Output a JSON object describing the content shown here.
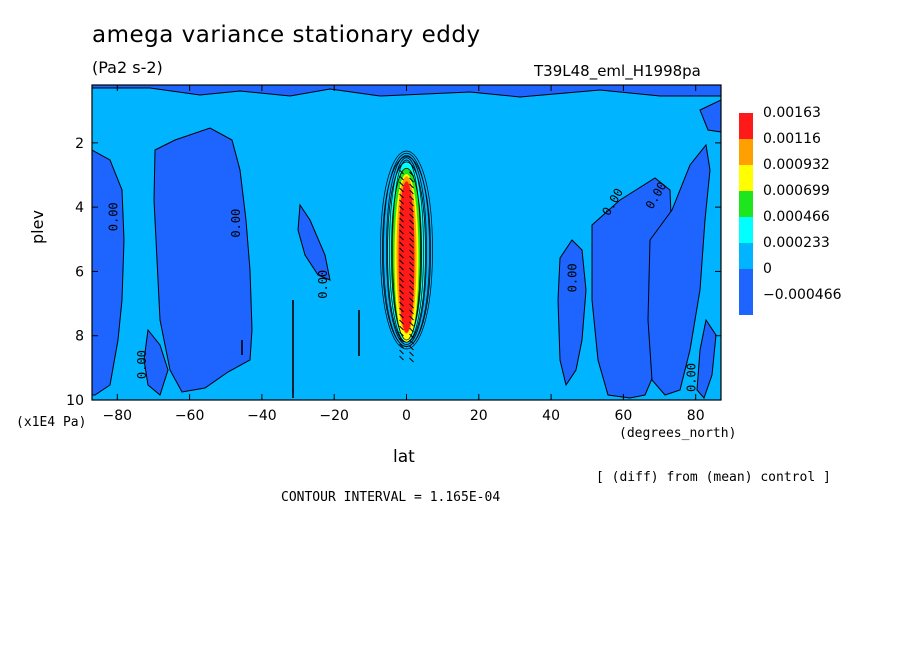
{
  "chart_data": {
    "type": "contour",
    "title": "amega variance stationary eddy",
    "units": "(Pa2 s-2)",
    "run_name": "T39L48_eml_H1998pa",
    "xlabel": "lat",
    "xunit": "(degrees_north)",
    "ylabel": "plev",
    "yunit": "(x1E4 Pa)",
    "xlim": [
      -87,
      87
    ],
    "ylim": [
      10,
      0.2
    ],
    "xticks": [
      -80,
      -60,
      -40,
      -20,
      0,
      20,
      40,
      60,
      80
    ],
    "yticks": [
      2,
      4,
      6,
      8,
      10
    ],
    "contour_interval_text": "CONTOUR INTERVAL = 1.165E-04",
    "diff_note": "[ (diff) from (mean) control ]",
    "legend": [
      {
        "label": "0.00163",
        "color": "#ff1a1a"
      },
      {
        "label": "0.00116",
        "color": "#ff9f00"
      },
      {
        "label": "0.000932",
        "color": "#ffff00"
      },
      {
        "label": "0.000699",
        "color": "#1ee61e"
      },
      {
        "label": "0.000466",
        "color": "#00ffff"
      },
      {
        "label": "0.000233",
        "color": "#00b4ff"
      },
      {
        "label": "0",
        "color": "#1e64ff"
      },
      {
        "label": "-0.000466",
        "color": ""
      }
    ],
    "background_color": "#00b4ff",
    "contour_labels": [
      {
        "text": "0.00",
        "lat": -80,
        "plev": 4.3,
        "rot": -90
      },
      {
        "text": "0.00",
        "lat": -46,
        "plev": 4.5,
        "rot": -90
      },
      {
        "text": "0.00",
        "lat": -22,
        "plev": 6.4,
        "rot": -90
      },
      {
        "text": "0.00",
        "lat": -72,
        "plev": 8.9,
        "rot": -90
      },
      {
        "text": "0.00",
        "lat": 47,
        "plev": 6.2,
        "rot": -90
      },
      {
        "text": "0.00",
        "lat": 58,
        "plev": 3.9,
        "rot": -60
      },
      {
        "text": "0.00",
        "lat": 70,
        "plev": 3.7,
        "rot": -60
      },
      {
        "text": "0.00",
        "lat": 80,
        "plev": 9.3,
        "rot": -90
      }
    ]
  }
}
